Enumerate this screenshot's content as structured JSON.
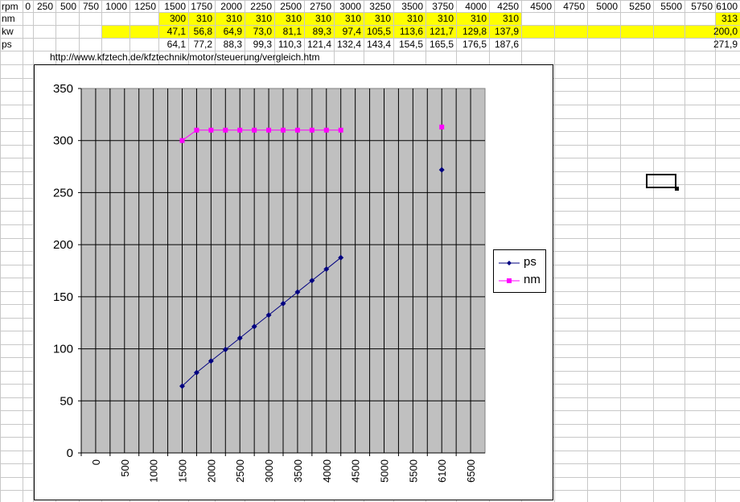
{
  "sheet": {
    "columns": [
      "rpm",
      "0",
      "250",
      "500",
      "750",
      "1000",
      "1250",
      "1500",
      "1750",
      "2000",
      "2250",
      "2500",
      "2750",
      "3000",
      "3250",
      "3500",
      "3750",
      "4000",
      "4250",
      "4500",
      "4750",
      "5000",
      "5250",
      "5500",
      "5750",
      "6100"
    ],
    "rows": [
      {
        "label": "nm",
        "cells": [
          "",
          "",
          "",
          "",
          "",
          "",
          "300",
          "310",
          "310",
          "310",
          "310",
          "310",
          "310",
          "310",
          "310",
          "310",
          "310",
          "310",
          "",
          "",
          "",
          "",
          "",
          "",
          "313"
        ]
      },
      {
        "label": "kw",
        "cells": [
          "",
          "",
          "",
          "",
          "",
          "",
          "47,1",
          "56,8",
          "64,9",
          "73,0",
          "81,1",
          "89,3",
          "97,4",
          "105,5",
          "113,6",
          "121,7",
          "129,8",
          "137,9",
          "",
          "",
          "",
          "",
          "",
          "",
          "200,0"
        ]
      },
      {
        "label": "ps",
        "cells": [
          "",
          "",
          "",
          "",
          "",
          "",
          "64,1",
          "77,2",
          "88,3",
          "99,3",
          "110,3",
          "121,4",
          "132,4",
          "143,4",
          "154,5",
          "165,5",
          "176,5",
          "187,6",
          "",
          "",
          "",
          "",
          "",
          "",
          "271,9"
        ]
      }
    ],
    "note": "http://www.kfztech.de/kfztechnik/motor/steuerung/vergleich.htm",
    "highlight_color": "#ffff00"
  },
  "chart_data": {
    "type": "line",
    "x_categories": [
      "0",
      "500",
      "1000",
      "1500",
      "2000",
      "2500",
      "3000",
      "3500",
      "4000",
      "4500",
      "5000",
      "5500",
      "6100",
      "6500"
    ],
    "ylim": [
      0,
      350
    ],
    "yticks": [
      "0",
      "50",
      "100",
      "150",
      "200",
      "250",
      "300",
      "350"
    ],
    "grid": true,
    "legend_position": "right",
    "series": [
      {
        "name": "ps",
        "color": "#000080",
        "marker": "diamond",
        "points": [
          [
            1500,
            64.1
          ],
          [
            1750,
            77.2
          ],
          [
            2000,
            88.3
          ],
          [
            2250,
            99.3
          ],
          [
            2500,
            110.3
          ],
          [
            2750,
            121.4
          ],
          [
            3000,
            132.4
          ],
          [
            3250,
            143.4
          ],
          [
            3500,
            154.5
          ],
          [
            3750,
            165.5
          ],
          [
            4000,
            176.5
          ],
          [
            4250,
            187.6
          ]
        ],
        "extra_point": [
          6100,
          271.9
        ]
      },
      {
        "name": "nm",
        "color": "#ff00ff",
        "marker": "square",
        "points": [
          [
            1500,
            300
          ],
          [
            1750,
            310
          ],
          [
            2000,
            310
          ],
          [
            2250,
            310
          ],
          [
            2500,
            310
          ],
          [
            2750,
            310
          ],
          [
            3000,
            310
          ],
          [
            3250,
            310
          ],
          [
            3500,
            310
          ],
          [
            3750,
            310
          ],
          [
            4000,
            310
          ],
          [
            4250,
            310
          ]
        ],
        "extra_point": [
          6100,
          313
        ]
      }
    ]
  }
}
